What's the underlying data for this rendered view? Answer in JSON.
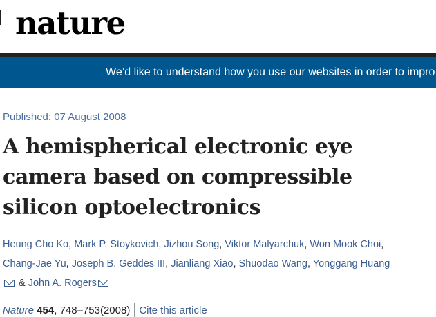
{
  "header": {
    "logo": "nature"
  },
  "banner": {
    "text": "We’d like to understand how you use our websites in order to impro"
  },
  "article": {
    "published": "Published: 07 August 2008",
    "title": "A hemispherical electronic eye camera based on compressible silicon optoelectronics",
    "authors": [
      "Heung Cho Ko",
      "Mark P. Stoykovich",
      "Jizhou Song",
      "Viktor Malyarchuk",
      "Won Mook Choi",
      "Chang-Jae Yu",
      "Joseph B. Geddes III",
      "Jianliang Xiao",
      "Shuodao Wang",
      "Yonggang Huang",
      "John A. Rogers"
    ],
    "author_separator": ", ",
    "ampersand": " & ",
    "journal": "Nature",
    "volume": "454",
    "pages": ", 748–753",
    "year": "(2008)",
    "cite_label": "Cite this article"
  }
}
